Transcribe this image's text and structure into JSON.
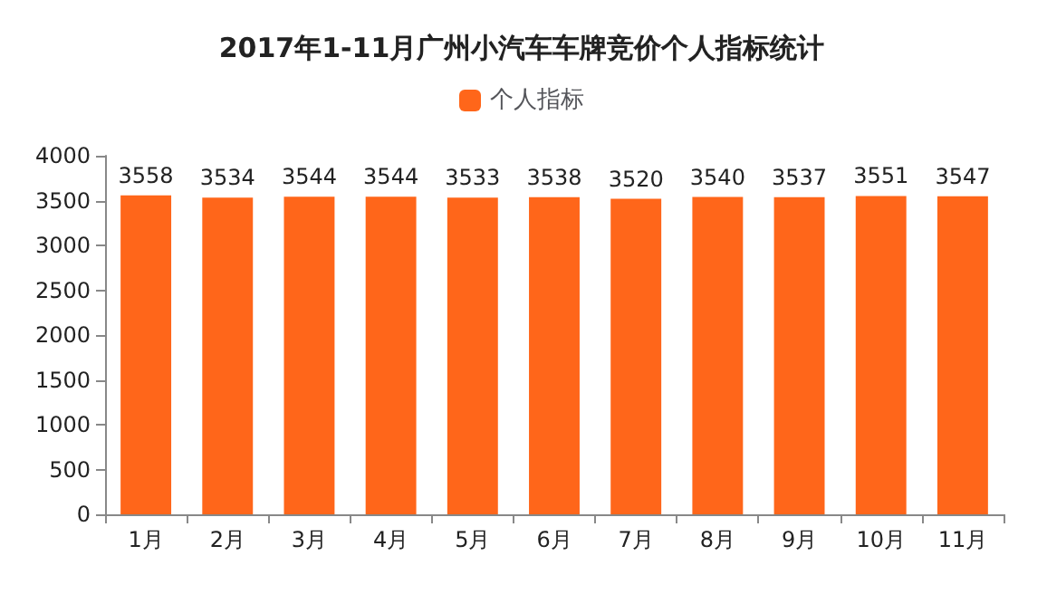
{
  "chart_data": {
    "type": "bar",
    "title": "2017年1-11月广州小汽车车牌竞价个人指标统计",
    "categories": [
      "1月",
      "2月",
      "3月",
      "4月",
      "5月",
      "6月",
      "7月",
      "8月",
      "9月",
      "10月",
      "11月"
    ],
    "series": [
      {
        "name": "个人指标",
        "color": "#ff661a",
        "values": [
          3558,
          3534,
          3544,
          3544,
          3533,
          3538,
          3520,
          3540,
          3537,
          3551,
          3547
        ]
      }
    ],
    "ylim": [
      0,
      4000
    ],
    "yticks": [
      0,
      500,
      1000,
      1500,
      2000,
      2500,
      3000,
      3500,
      4000
    ],
    "grid": false,
    "legend": "top",
    "data_labels": true
  }
}
